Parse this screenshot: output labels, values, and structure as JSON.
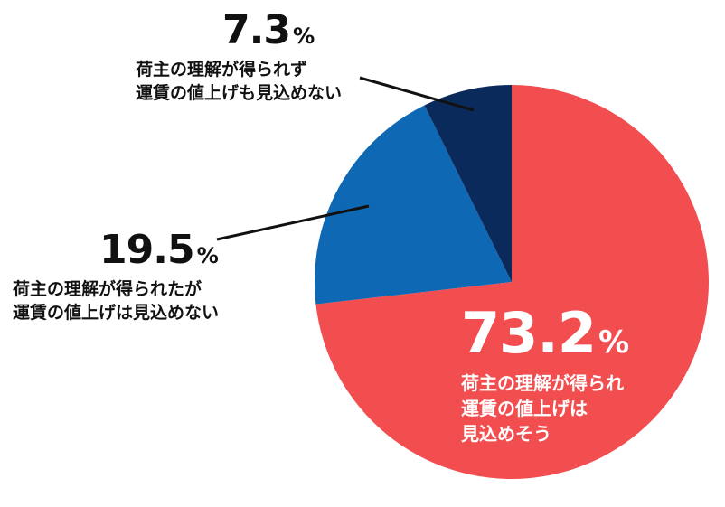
{
  "chart_data": {
    "type": "pie",
    "slices": [
      {
        "value": 73.2,
        "value_label": "73.2",
        "unit": "%",
        "label_lines": [
          "荷主の理解が得られ",
          "運賃の値上げは",
          "見込めそう"
        ],
        "color": "#f24e50"
      },
      {
        "value": 19.5,
        "value_label": "19.5",
        "unit": "%",
        "label_lines": [
          "荷主の理解が得られたが",
          "運賃の値上げは見込めない"
        ],
        "color": "#0f68b3"
      },
      {
        "value": 7.3,
        "value_label": "7.3",
        "unit": "%",
        "label_lines": [
          "荷主の理解が得られず",
          "運賃の値上げも見込めない"
        ],
        "color": "#0b2a5c"
      }
    ],
    "start": "12 o'clock",
    "direction": "clockwise",
    "leader_line_color": "#111111"
  }
}
